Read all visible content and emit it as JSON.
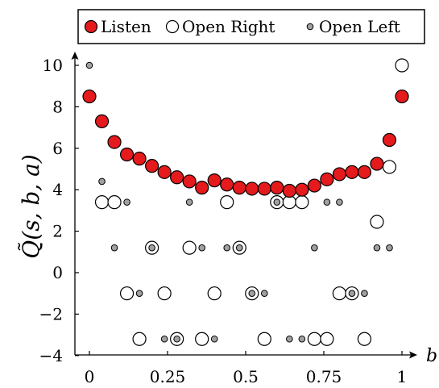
{
  "chart_data": {
    "type": "scatter",
    "xlabel": "b",
    "ylabel": "Q̃(s, b, a)",
    "xlim": [
      -0.03,
      1.05
    ],
    "ylim": [
      -4,
      10.6
    ],
    "xticks": [
      0,
      0.25,
      0.5,
      0.75,
      1
    ],
    "xtick_labels": [
      "0",
      "0.25",
      "0.5",
      "0.75",
      "1"
    ],
    "yticks": [
      -4,
      -2,
      0,
      2,
      4,
      6,
      8,
      10
    ],
    "ytick_labels": [
      "−4",
      "−2",
      "0",
      "2",
      "4",
      "6",
      "8",
      "10"
    ],
    "legend_position": "top",
    "series": [
      {
        "name": "Listen",
        "marker": "large-filled",
        "color": "#e41a1c",
        "points": [
          [
            0,
            8.5
          ],
          [
            0.04,
            7.3
          ],
          [
            0.08,
            6.3
          ],
          [
            0.12,
            5.7
          ],
          [
            0.16,
            5.5
          ],
          [
            0.2,
            5.15
          ],
          [
            0.24,
            4.85
          ],
          [
            0.28,
            4.6
          ],
          [
            0.32,
            4.4
          ],
          [
            0.36,
            4.1
          ],
          [
            0.4,
            4.45
          ],
          [
            0.44,
            4.25
          ],
          [
            0.48,
            4.1
          ],
          [
            0.52,
            4.05
          ],
          [
            0.56,
            4.05
          ],
          [
            0.6,
            4.1
          ],
          [
            0.64,
            3.95
          ],
          [
            0.68,
            4.0
          ],
          [
            0.72,
            4.2
          ],
          [
            0.76,
            4.5
          ],
          [
            0.8,
            4.75
          ],
          [
            0.84,
            4.85
          ],
          [
            0.88,
            4.85
          ],
          [
            0.92,
            5.25
          ],
          [
            0.96,
            6.4
          ],
          [
            1,
            8.5
          ]
        ]
      },
      {
        "name": "Open Right",
        "marker": "large-open",
        "color": "#ffffff",
        "points": [
          [
            0.04,
            3.4
          ],
          [
            0.08,
            3.4
          ],
          [
            0.12,
            -1.0
          ],
          [
            0.16,
            -3.2
          ],
          [
            0.2,
            1.2
          ],
          [
            0.24,
            -1.0
          ],
          [
            0.28,
            -3.2
          ],
          [
            0.32,
            1.2
          ],
          [
            0.36,
            -3.2
          ],
          [
            0.4,
            -1.0
          ],
          [
            0.44,
            3.4
          ],
          [
            0.48,
            1.2
          ],
          [
            0.52,
            -1.0
          ],
          [
            0.56,
            -3.2
          ],
          [
            0.6,
            3.4
          ],
          [
            0.64,
            3.4
          ],
          [
            0.68,
            3.4
          ],
          [
            0.72,
            -3.2
          ],
          [
            0.76,
            -3.2
          ],
          [
            0.8,
            -1.0
          ],
          [
            0.84,
            -1.0
          ],
          [
            0.88,
            -3.2
          ],
          [
            0.92,
            2.45
          ],
          [
            0.96,
            5.1
          ],
          [
            1,
            10.0
          ]
        ]
      },
      {
        "name": "Open Left",
        "marker": "small-filled",
        "color": "#a0a0a0",
        "points": [
          [
            0,
            10.0
          ],
          [
            0.04,
            4.4
          ],
          [
            0.08,
            1.2
          ],
          [
            0.12,
            3.4
          ],
          [
            0.16,
            -1.0
          ],
          [
            0.2,
            1.2
          ],
          [
            0.24,
            -3.2
          ],
          [
            0.28,
            -3.2
          ],
          [
            0.32,
            3.4
          ],
          [
            0.36,
            1.2
          ],
          [
            0.4,
            -3.2
          ],
          [
            0.44,
            1.2
          ],
          [
            0.48,
            1.2
          ],
          [
            0.52,
            -1.0
          ],
          [
            0.56,
            -1.0
          ],
          [
            0.6,
            3.4
          ],
          [
            0.64,
            -3.2
          ],
          [
            0.68,
            -3.2
          ],
          [
            0.72,
            1.2
          ],
          [
            0.76,
            3.4
          ],
          [
            0.8,
            3.4
          ],
          [
            0.84,
            -1.0
          ],
          [
            0.88,
            -1.0
          ],
          [
            0.92,
            1.2
          ],
          [
            0.96,
            1.2
          ]
        ]
      }
    ]
  }
}
